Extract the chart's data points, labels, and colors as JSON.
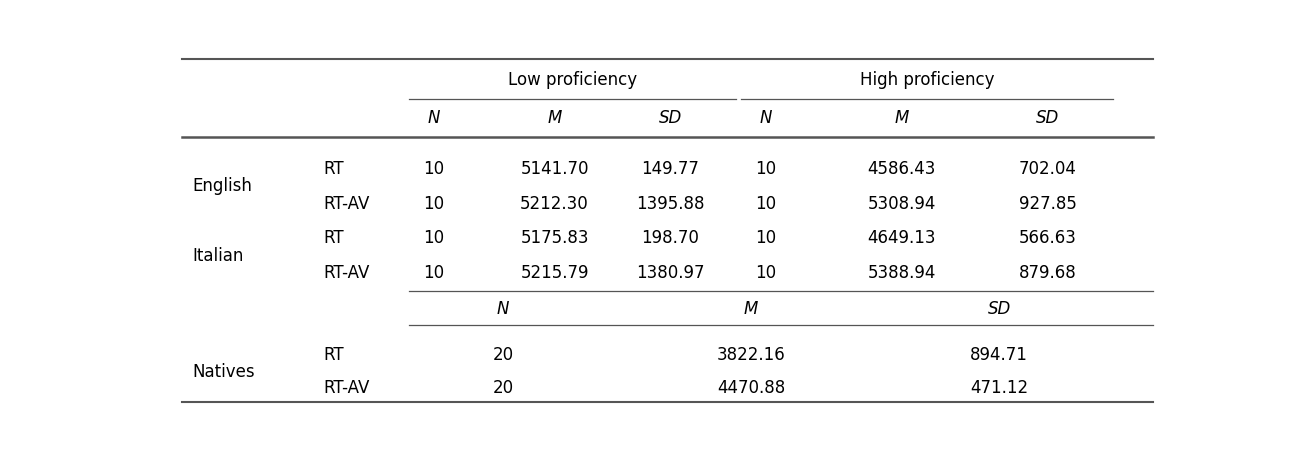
{
  "figsize": [
    12.98,
    4.6
  ],
  "dpi": 100,
  "data": {
    "English": {
      "RT": {
        "lp_n": "10",
        "lp_m": "5141.70",
        "lp_sd": "149.77",
        "hp_n": "10",
        "hp_m": "4586.43",
        "hp_sd": "702.04"
      },
      "RT-AV": {
        "lp_n": "10",
        "lp_m": "5212.30",
        "lp_sd": "1395.88",
        "hp_n": "10",
        "hp_m": "5308.94",
        "hp_sd": "927.85"
      }
    },
    "Italian": {
      "RT": {
        "lp_n": "10",
        "lp_m": "5175.83",
        "lp_sd": "198.70",
        "hp_n": "10",
        "hp_m": "4649.13",
        "hp_sd": "566.63"
      },
      "RT-AV": {
        "lp_n": "10",
        "lp_m": "5215.79",
        "lp_sd": "1380.97",
        "hp_n": "10",
        "hp_m": "5388.94",
        "hp_sd": "879.68"
      }
    },
    "Natives": {
      "RT": {
        "n": "20",
        "m": "3822.16",
        "sd": "894.71"
      },
      "RT-AV": {
        "n": "20",
        "m": "4470.88",
        "sd": "471.12"
      }
    }
  },
  "col_x": {
    "group": 0.03,
    "subrow": 0.16,
    "lp_n": 0.27,
    "lp_m": 0.39,
    "lp_sd": 0.505,
    "hp_n": 0.6,
    "hp_m": 0.735,
    "hp_sd": 0.88
  },
  "font_size": 12,
  "line_color": "#555555",
  "bg_color": "#ffffff",
  "text_color": "#000000"
}
